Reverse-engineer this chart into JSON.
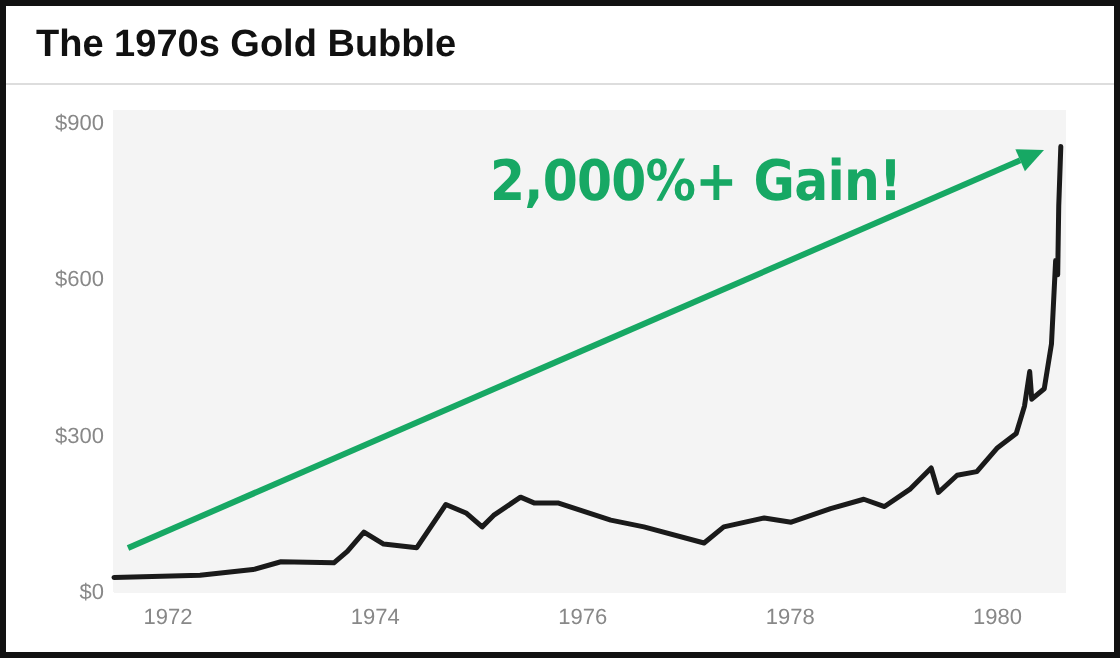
{
  "chart_data": {
    "type": "line",
    "title": "The 1970s Gold Bubble",
    "annotations": [
      "2,000%+ Gain!"
    ],
    "x": [
      1971.48,
      1972.31,
      1972.82,
      1973.09,
      1973.6,
      1973.73,
      1973.89,
      1974.08,
      1974.4,
      1974.68,
      1974.88,
      1975.03,
      1975.14,
      1975.4,
      1975.53,
      1975.76,
      1976.27,
      1976.59,
      1977.17,
      1977.36,
      1977.75,
      1978.01,
      1978.39,
      1978.71,
      1978.91,
      1979.16,
      1979.36,
      1979.43,
      1979.61,
      1979.8,
      1980.0,
      1980.18,
      1980.26,
      1980.31,
      1980.33,
      1980.45,
      1980.52,
      1980.56,
      1980.58,
      1980.59,
      1980.61
    ],
    "series": [
      {
        "color": "#1a1a1a",
        "values": [
          28,
          32,
          43,
          58,
          56,
          78,
          115,
          92,
          85,
          168,
          151,
          125,
          147,
          182,
          171,
          171,
          138,
          125,
          94,
          125,
          142,
          134,
          160,
          178,
          164,
          198,
          238,
          191,
          224,
          231,
          277,
          304,
          357,
          423,
          370,
          390,
          476,
          636,
          609,
          741,
          855
        ]
      }
    ],
    "xlim": [
      1971.48,
      1980.66
    ],
    "xticks": [
      1972,
      1974,
      1976,
      1978,
      1980
    ],
    "ylim": [
      0,
      925
    ],
    "yticks": [
      {
        "value": 0,
        "label": "$0"
      },
      {
        "value": 300,
        "label": "$300"
      },
      {
        "value": 600,
        "label": "$600"
      },
      {
        "value": 900,
        "label": "$900"
      }
    ],
    "grid": false,
    "marker": "none",
    "line_style": "solid"
  }
}
